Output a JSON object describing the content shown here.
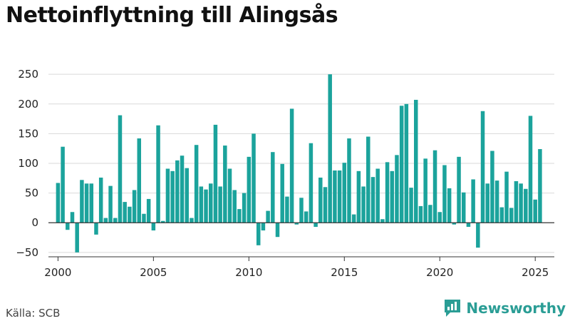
{
  "header": {
    "title": "Nettoinflyttning till Alingsås"
  },
  "footer": {
    "source": "Källa: SCB",
    "brand": "Newsworthy"
  },
  "colors": {
    "bar": "#1ba39c",
    "brand": "#2a9d95"
  },
  "chart_data": {
    "type": "bar",
    "title": "Nettoinflyttning till Alingsås",
    "xlabel": "",
    "ylabel": "",
    "ylim": [
      -55,
      255
    ],
    "yticks": [
      -50,
      0,
      50,
      100,
      150,
      200,
      250
    ],
    "xlim": [
      1999.5,
      2026.0
    ],
    "xticks": [
      2000,
      2005,
      2010,
      2015,
      2020,
      2025
    ],
    "grid": true,
    "categories": [
      "2000 Q1",
      "2000 Q2",
      "2000 Q3",
      "2000 Q4",
      "2001 Q1",
      "2001 Q2",
      "2001 Q3",
      "2001 Q4",
      "2002 Q1",
      "2002 Q2",
      "2002 Q3",
      "2002 Q4",
      "2003 Q1",
      "2003 Q2",
      "2003 Q3",
      "2003 Q4",
      "2004 Q1",
      "2004 Q2",
      "2004 Q3",
      "2004 Q4",
      "2005 Q1",
      "2005 Q2",
      "2005 Q3",
      "2005 Q4",
      "2006 Q1",
      "2006 Q2",
      "2006 Q3",
      "2006 Q4",
      "2007 Q1",
      "2007 Q2",
      "2007 Q3",
      "2007 Q4",
      "2008 Q1",
      "2008 Q2",
      "2008 Q3",
      "2008 Q4",
      "2009 Q1",
      "2009 Q2",
      "2009 Q3",
      "2009 Q4",
      "2010 Q1",
      "2010 Q2",
      "2010 Q3",
      "2010 Q4",
      "2011 Q1",
      "2011 Q2",
      "2011 Q3",
      "2011 Q4",
      "2012 Q1",
      "2012 Q2",
      "2012 Q3",
      "2012 Q4",
      "2013 Q1",
      "2013 Q2",
      "2013 Q3",
      "2013 Q4",
      "2014 Q1",
      "2014 Q2",
      "2014 Q3",
      "2014 Q4",
      "2015 Q1",
      "2015 Q2",
      "2015 Q3",
      "2015 Q4",
      "2016 Q1",
      "2016 Q2",
      "2016 Q3",
      "2016 Q4",
      "2017 Q1",
      "2017 Q2",
      "2017 Q3",
      "2017 Q4",
      "2018 Q1",
      "2018 Q2",
      "2018 Q3",
      "2018 Q4",
      "2019 Q1",
      "2019 Q2",
      "2019 Q3",
      "2019 Q4",
      "2020 Q1",
      "2020 Q2",
      "2020 Q3",
      "2020 Q4",
      "2021 Q1",
      "2021 Q2",
      "2021 Q3",
      "2021 Q4",
      "2022 Q1",
      "2022 Q2",
      "2022 Q3",
      "2022 Q4",
      "2023 Q1",
      "2023 Q2",
      "2023 Q3",
      "2023 Q4",
      "2024 Q1",
      "2024 Q2",
      "2024 Q3",
      "2024 Q4",
      "2025 Q1",
      "2025 Q2"
    ],
    "x": [
      2000.0,
      2000.25,
      2000.5,
      2000.75,
      2001.0,
      2001.25,
      2001.5,
      2001.75,
      2002.0,
      2002.25,
      2002.5,
      2002.75,
      2003.0,
      2003.25,
      2003.5,
      2003.75,
      2004.0,
      2004.25,
      2004.5,
      2004.75,
      2005.0,
      2005.25,
      2005.5,
      2005.75,
      2006.0,
      2006.25,
      2006.5,
      2006.75,
      2007.0,
      2007.25,
      2007.5,
      2007.75,
      2008.0,
      2008.25,
      2008.5,
      2008.75,
      2009.0,
      2009.25,
      2009.5,
      2009.75,
      2010.0,
      2010.25,
      2010.5,
      2010.75,
      2011.0,
      2011.25,
      2011.5,
      2011.75,
      2012.0,
      2012.25,
      2012.5,
      2012.75,
      2013.0,
      2013.25,
      2013.5,
      2013.75,
      2014.0,
      2014.25,
      2014.5,
      2014.75,
      2015.0,
      2015.25,
      2015.5,
      2015.75,
      2016.0,
      2016.25,
      2016.5,
      2016.75,
      2017.0,
      2017.25,
      2017.5,
      2017.75,
      2018.0,
      2018.25,
      2018.5,
      2018.75,
      2019.0,
      2019.25,
      2019.5,
      2019.75,
      2020.0,
      2020.25,
      2020.5,
      2020.75,
      2021.0,
      2021.25,
      2021.5,
      2021.75,
      2022.0,
      2022.25,
      2022.5,
      2022.75,
      2023.0,
      2023.25,
      2023.5,
      2023.75,
      2024.0,
      2024.25,
      2024.5,
      2024.75,
      2025.0,
      2025.25
    ],
    "values": [
      67,
      128,
      -12,
      18,
      -50,
      72,
      66,
      66,
      -20,
      76,
      8,
      62,
      8,
      181,
      35,
      27,
      55,
      142,
      15,
      40,
      -13,
      164,
      3,
      91,
      87,
      105,
      113,
      92,
      8,
      131,
      61,
      56,
      66,
      165,
      61,
      130,
      91,
      55,
      23,
      50,
      111,
      150,
      -38,
      -13,
      20,
      119,
      -24,
      99,
      44,
      192,
      -3,
      42,
      19,
      134,
      -7,
      76,
      60,
      250,
      88,
      88,
      101,
      142,
      14,
      87,
      61,
      145,
      77,
      91,
      6,
      102,
      87,
      114,
      197,
      200,
      59,
      207,
      28,
      108,
      30,
      122,
      18,
      97,
      58,
      -3,
      111,
      51,
      -7,
      73,
      -42,
      188,
      66,
      121,
      71,
      26,
      86,
      25,
      70,
      66,
      57,
      180,
      39,
      124
    ]
  }
}
